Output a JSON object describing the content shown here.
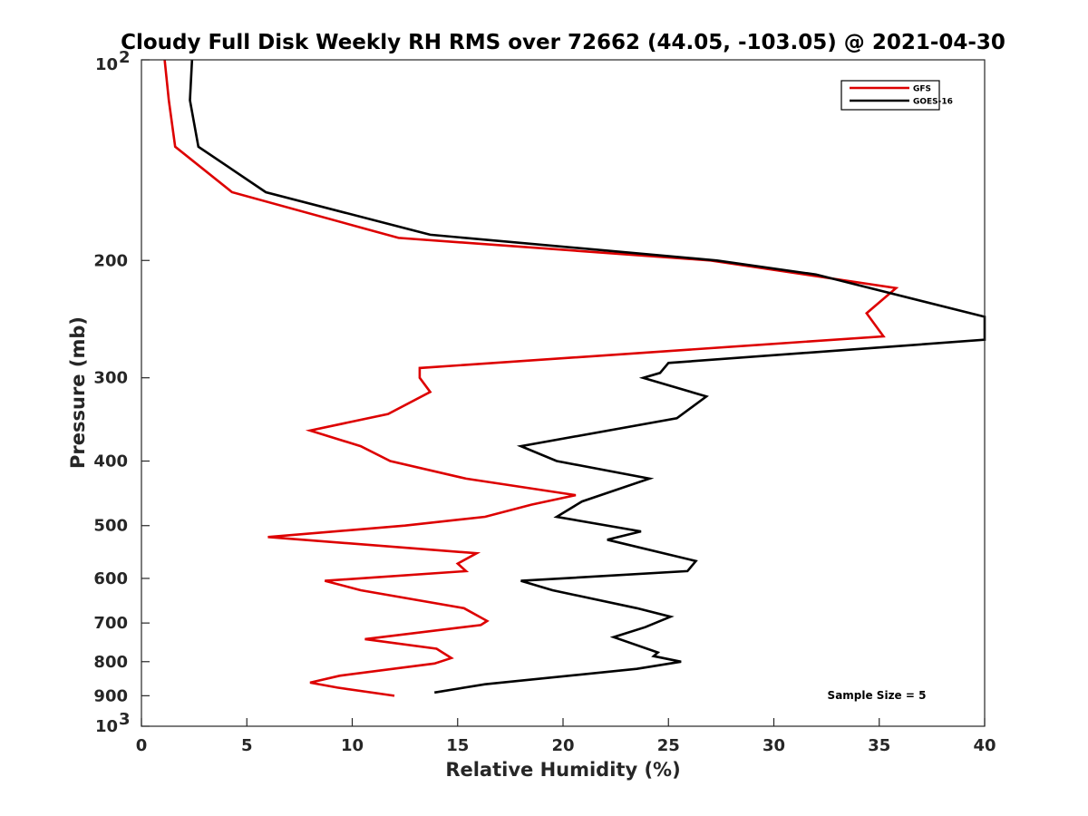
{
  "chart_data": {
    "type": "line",
    "title": "Cloudy Full Disk Weekly RH RMS over 72662 (44.05, -103.05) @ 2021-04-30",
    "xlabel": "Relative Humidity (%)",
    "ylabel": "Pressure (mb)",
    "xlim": [
      0,
      40
    ],
    "ylim": [
      100,
      1000
    ],
    "y_scale": "log",
    "y_reversed": true,
    "x_ticks": [
      "0",
      "5",
      "10",
      "15",
      "20",
      "25",
      "30",
      "35",
      "40"
    ],
    "y_ticks": [
      {
        "value": 100,
        "label": "10",
        "sup": "2"
      },
      {
        "value": 200,
        "label": "200"
      },
      {
        "value": 300,
        "label": "300"
      },
      {
        "value": 400,
        "label": "400"
      },
      {
        "value": 500,
        "label": "500"
      },
      {
        "value": 600,
        "label": "600"
      },
      {
        "value": 700,
        "label": "700"
      },
      {
        "value": 800,
        "label": "800"
      },
      {
        "value": 900,
        "label": "900"
      },
      {
        "value": 1000,
        "label": "10",
        "sup": "3"
      }
    ],
    "legend_position": "top-right",
    "grid": false,
    "annotation": "Sample Size = 5",
    "series": [
      {
        "name": "GFS",
        "color": "#dd0000",
        "points": [
          [
            1.1,
            100
          ],
          [
            1.3,
            115
          ],
          [
            1.6,
            135
          ],
          [
            4.3,
            158
          ],
          [
            12.2,
            185
          ],
          [
            27.0,
            200
          ],
          [
            35.8,
            220
          ],
          [
            34.4,
            240
          ],
          [
            35.2,
            260
          ],
          [
            13.2,
            290
          ],
          [
            13.2,
            300
          ],
          [
            13.7,
            315
          ],
          [
            11.7,
            340
          ],
          [
            8.0,
            360
          ],
          [
            10.4,
            380
          ],
          [
            11.8,
            400
          ],
          [
            15.4,
            425
          ],
          [
            20.6,
            450
          ],
          [
            18.5,
            465
          ],
          [
            16.3,
            485
          ],
          [
            12.5,
            500
          ],
          [
            6.0,
            520
          ],
          [
            15.9,
            550
          ],
          [
            15.0,
            570
          ],
          [
            15.4,
            585
          ],
          [
            8.7,
            605
          ],
          [
            10.4,
            625
          ],
          [
            15.3,
            665
          ],
          [
            16.4,
            695
          ],
          [
            16.1,
            705
          ],
          [
            10.6,
            740
          ],
          [
            14.0,
            765
          ],
          [
            14.7,
            790
          ],
          [
            13.9,
            805
          ],
          [
            9.4,
            840
          ],
          [
            8.0,
            860
          ],
          [
            9.3,
            875
          ],
          [
            12.0,
            900
          ]
        ]
      },
      {
        "name": "GOES-16",
        "color": "#000000",
        "points": [
          [
            2.4,
            100
          ],
          [
            2.3,
            115
          ],
          [
            2.7,
            135
          ],
          [
            5.9,
            158
          ],
          [
            13.7,
            183
          ],
          [
            27.3,
            200
          ],
          [
            32.0,
            210
          ],
          [
            40.0,
            243
          ],
          [
            40.0,
            263
          ],
          [
            25.0,
            285
          ],
          [
            24.6,
            295
          ],
          [
            23.8,
            300
          ],
          [
            26.8,
            320
          ],
          [
            25.4,
            345
          ],
          [
            18.0,
            380
          ],
          [
            19.7,
            400
          ],
          [
            24.1,
            425
          ],
          [
            20.9,
            460
          ],
          [
            19.7,
            485
          ],
          [
            23.7,
            510
          ],
          [
            22.1,
            525
          ],
          [
            26.3,
            565
          ],
          [
            25.9,
            585
          ],
          [
            18.0,
            605
          ],
          [
            19.5,
            625
          ],
          [
            23.5,
            665
          ],
          [
            25.1,
            685
          ],
          [
            23.9,
            710
          ],
          [
            22.4,
            735
          ],
          [
            24.5,
            775
          ],
          [
            24.3,
            785
          ],
          [
            25.6,
            800
          ],
          [
            23.5,
            820
          ],
          [
            16.3,
            865
          ],
          [
            13.9,
            890
          ]
        ]
      }
    ]
  }
}
